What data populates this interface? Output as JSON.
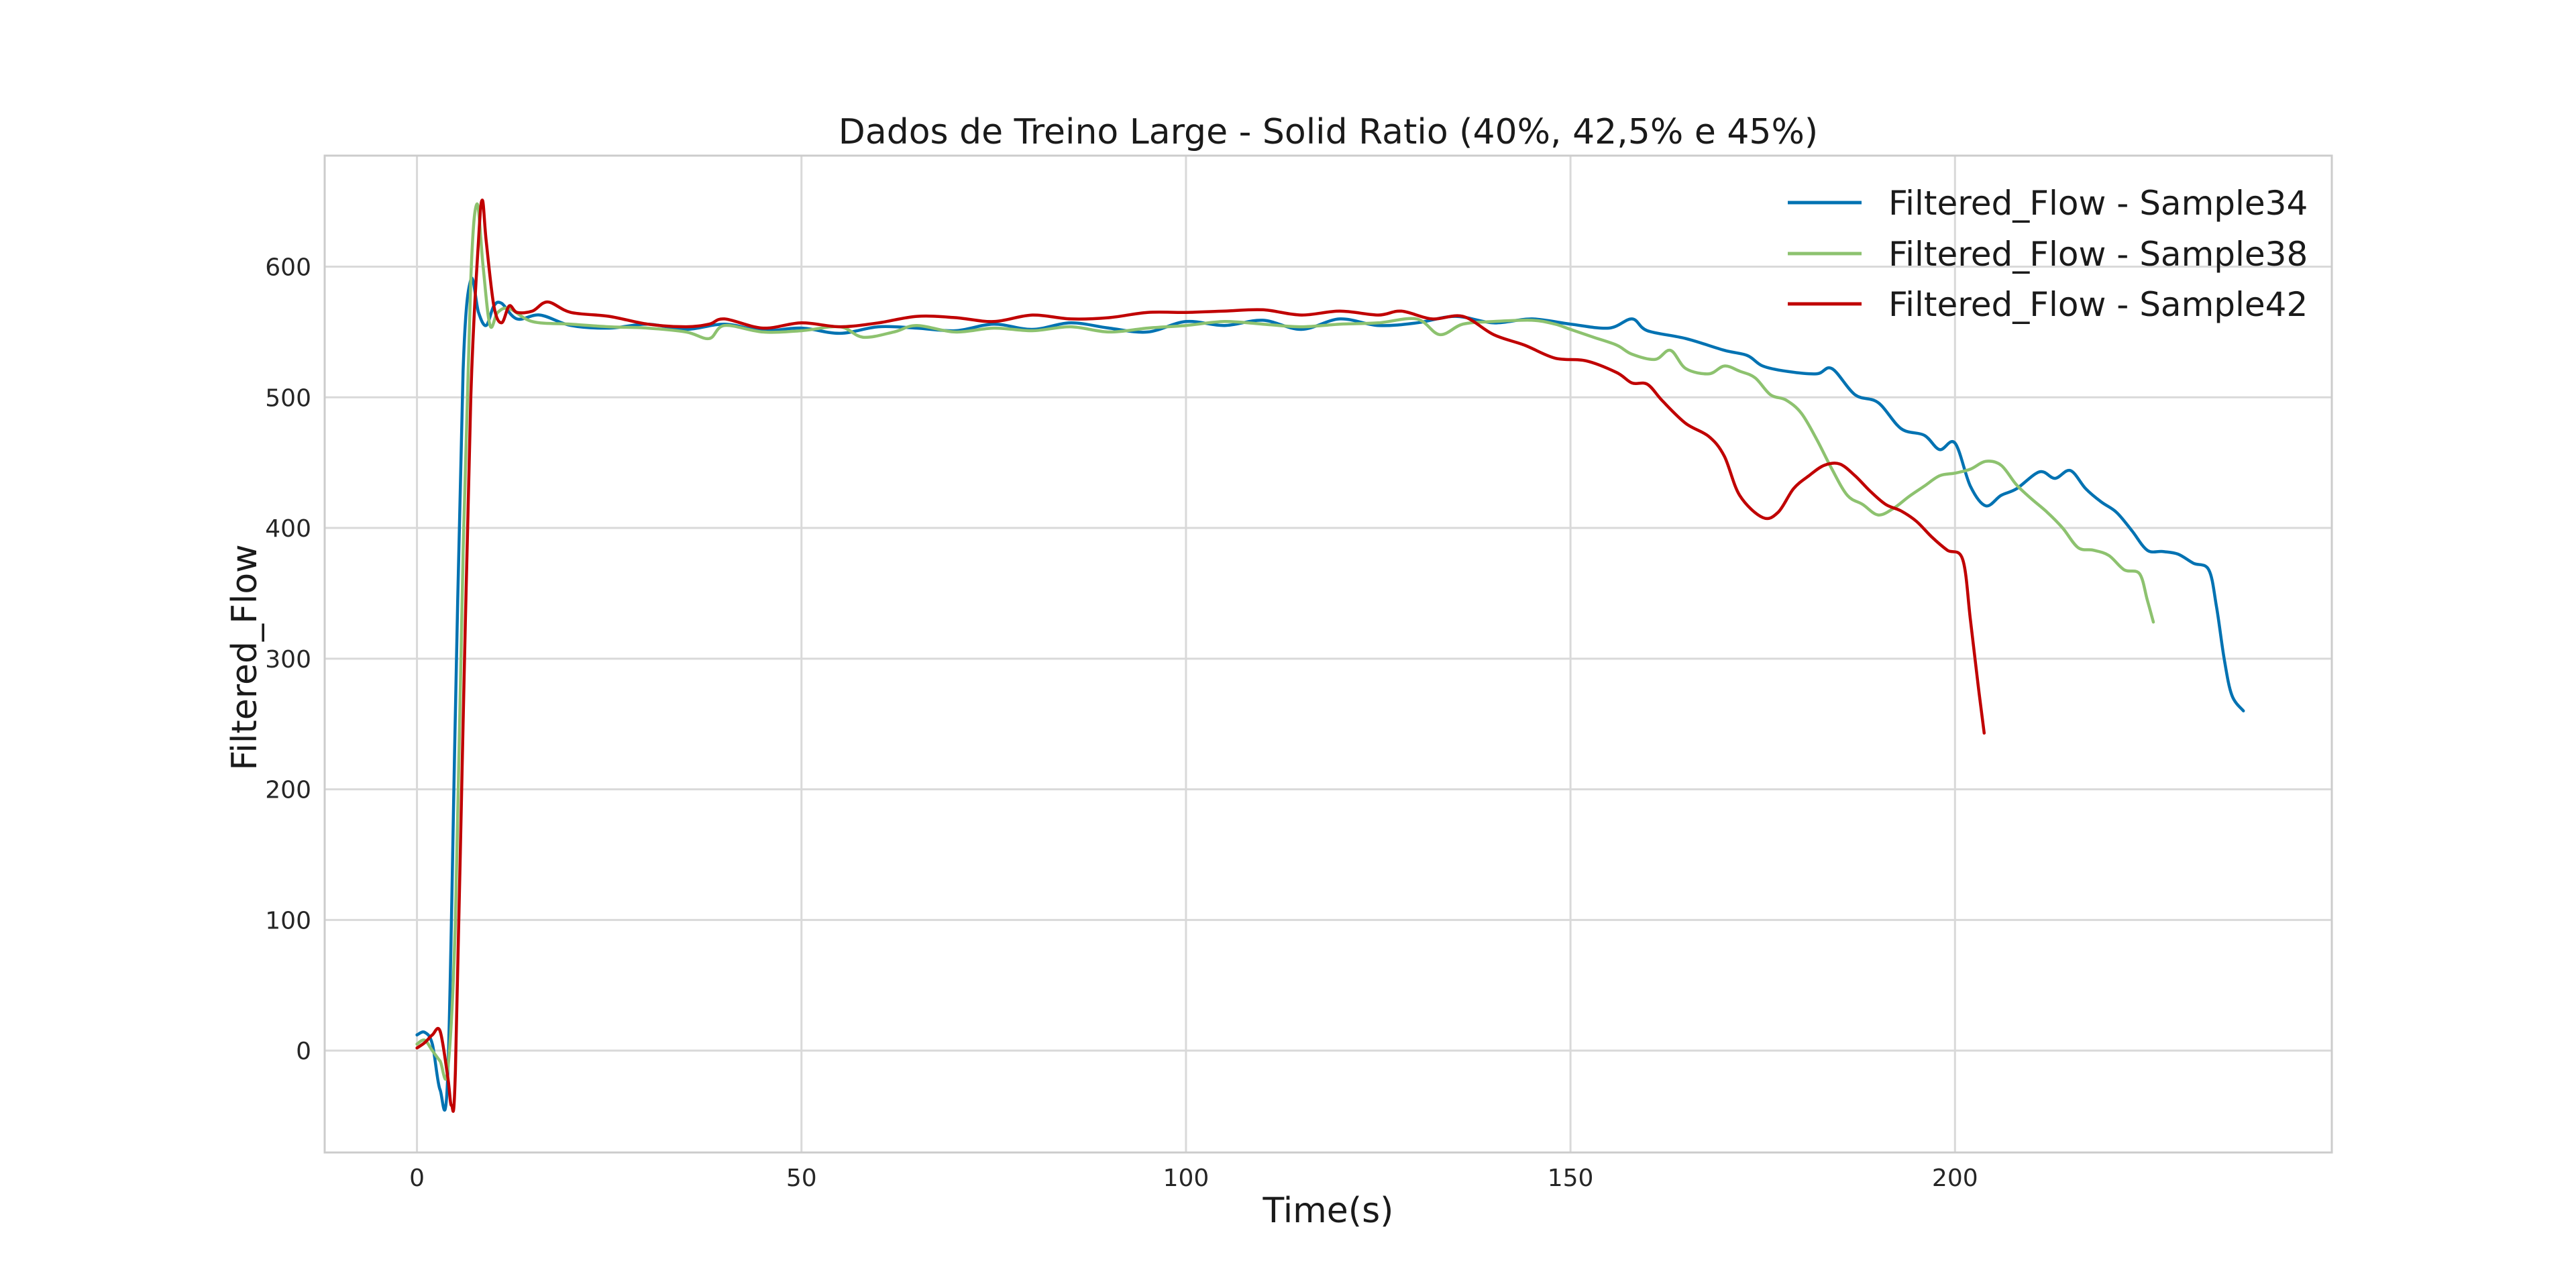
{
  "chart_data": {
    "type": "line",
    "title": "Dados de Treino Large - Solid Ratio (40%, 42,5% e 45%)",
    "xlabel": "Time(s)",
    "ylabel": "Filtered_Flow",
    "xlim": [
      -12,
      249
    ],
    "ylim": [
      -78,
      685
    ],
    "xticks": [
      0,
      50,
      100,
      150,
      200
    ],
    "xtick_labels": [
      "0",
      "50",
      "100",
      "150",
      "200"
    ],
    "yticks": [
      0,
      100,
      200,
      300,
      400,
      500,
      600
    ],
    "ytick_labels": [
      "0",
      "100",
      "200",
      "300",
      "400",
      "500",
      "600"
    ],
    "grid": true,
    "legend_position": "top-right",
    "series": [
      {
        "name": "Filtered_Flow - Sample34",
        "color": "#0072B2",
        "points": [
          [
            0,
            12
          ],
          [
            1,
            14
          ],
          [
            2,
            5
          ],
          [
            3,
            -30
          ],
          [
            4,
            -20
          ],
          [
            5,
            260
          ],
          [
            6,
            520
          ],
          [
            7,
            590
          ],
          [
            8,
            565
          ],
          [
            9,
            555
          ],
          [
            10,
            570
          ],
          [
            11,
            572
          ],
          [
            13,
            560
          ],
          [
            16,
            563
          ],
          [
            20,
            555
          ],
          [
            25,
            553
          ],
          [
            30,
            556
          ],
          [
            35,
            552
          ],
          [
            40,
            556
          ],
          [
            45,
            551
          ],
          [
            50,
            553
          ],
          [
            55,
            549
          ],
          [
            60,
            554
          ],
          [
            65,
            553
          ],
          [
            70,
            551
          ],
          [
            75,
            556
          ],
          [
            80,
            552
          ],
          [
            85,
            557
          ],
          [
            90,
            553
          ],
          [
            95,
            550
          ],
          [
            100,
            558
          ],
          [
            105,
            555
          ],
          [
            110,
            559
          ],
          [
            115,
            552
          ],
          [
            120,
            560
          ],
          [
            125,
            555
          ],
          [
            130,
            557
          ],
          [
            135,
            562
          ],
          [
            140,
            557
          ],
          [
            145,
            560
          ],
          [
            150,
            556
          ],
          [
            155,
            553
          ],
          [
            158,
            560
          ],
          [
            160,
            551
          ],
          [
            165,
            545
          ],
          [
            170,
            536
          ],
          [
            173,
            532
          ],
          [
            175,
            524
          ],
          [
            178,
            520
          ],
          [
            182,
            518
          ],
          [
            184,
            522
          ],
          [
            187,
            502
          ],
          [
            190,
            496
          ],
          [
            193,
            476
          ],
          [
            196,
            471
          ],
          [
            198,
            460
          ],
          [
            200,
            465
          ],
          [
            202,
            432
          ],
          [
            204,
            417
          ],
          [
            206,
            425
          ],
          [
            208,
            430
          ],
          [
            211,
            443
          ],
          [
            213,
            438
          ],
          [
            215,
            444
          ],
          [
            217,
            430
          ],
          [
            219,
            420
          ],
          [
            221,
            412
          ],
          [
            223,
            398
          ],
          [
            225,
            383
          ],
          [
            227,
            382
          ],
          [
            229,
            380
          ],
          [
            231,
            373
          ],
          [
            233,
            368
          ],
          [
            234,
            340
          ],
          [
            235,
            300
          ],
          [
            236,
            272
          ],
          [
            237.5,
            260
          ]
        ]
      },
      {
        "name": "Filtered_Flow - Sample38",
        "color": "#8DC26F",
        "points": [
          [
            0,
            5
          ],
          [
            1,
            8
          ],
          [
            2,
            0
          ],
          [
            3,
            -8
          ],
          [
            4,
            -15
          ],
          [
            5,
            100
          ],
          [
            6,
            380
          ],
          [
            7,
            590
          ],
          [
            7.8,
            648
          ],
          [
            8.6,
            600
          ],
          [
            9.5,
            555
          ],
          [
            10.5,
            565
          ],
          [
            12,
            568
          ],
          [
            15,
            558
          ],
          [
            20,
            556
          ],
          [
            25,
            554
          ],
          [
            30,
            553
          ],
          [
            35,
            550
          ],
          [
            38,
            545
          ],
          [
            40,
            555
          ],
          [
            45,
            550
          ],
          [
            50,
            551
          ],
          [
            55,
            554
          ],
          [
            58,
            546
          ],
          [
            62,
            550
          ],
          [
            65,
            555
          ],
          [
            70,
            550
          ],
          [
            75,
            553
          ],
          [
            80,
            551
          ],
          [
            85,
            554
          ],
          [
            90,
            550
          ],
          [
            95,
            553
          ],
          [
            100,
            555
          ],
          [
            105,
            558
          ],
          [
            110,
            556
          ],
          [
            115,
            554
          ],
          [
            120,
            556
          ],
          [
            125,
            557
          ],
          [
            130,
            560
          ],
          [
            133,
            548
          ],
          [
            136,
            556
          ],
          [
            140,
            558
          ],
          [
            145,
            559
          ],
          [
            148,
            556
          ],
          [
            150,
            552
          ],
          [
            153,
            546
          ],
          [
            156,
            540
          ],
          [
            158,
            533
          ],
          [
            161,
            529
          ],
          [
            163,
            536
          ],
          [
            165,
            522
          ],
          [
            168,
            518
          ],
          [
            170,
            524
          ],
          [
            172,
            520
          ],
          [
            174,
            515
          ],
          [
            176,
            502
          ],
          [
            178,
            498
          ],
          [
            180,
            488
          ],
          [
            182,
            468
          ],
          [
            184,
            445
          ],
          [
            186,
            425
          ],
          [
            188,
            418
          ],
          [
            190,
            410
          ],
          [
            192,
            415
          ],
          [
            194,
            424
          ],
          [
            196,
            432
          ],
          [
            198,
            440
          ],
          [
            200,
            442
          ],
          [
            202,
            445
          ],
          [
            204,
            451
          ],
          [
            206,
            448
          ],
          [
            208,
            433
          ],
          [
            210,
            422
          ],
          [
            212,
            412
          ],
          [
            214,
            400
          ],
          [
            216,
            385
          ],
          [
            218,
            383
          ],
          [
            220,
            379
          ],
          [
            222,
            368
          ],
          [
            224,
            365
          ],
          [
            225,
            345
          ],
          [
            225.8,
            328
          ]
        ]
      },
      {
        "name": "Filtered_Flow - Sample42",
        "color": "#C00000",
        "points": [
          [
            0,
            2
          ],
          [
            1,
            6
          ],
          [
            2,
            12
          ],
          [
            3,
            15
          ],
          [
            4,
            -20
          ],
          [
            4.5,
            -42
          ],
          [
            5,
            -15
          ],
          [
            6,
            250
          ],
          [
            7,
            500
          ],
          [
            8,
            620
          ],
          [
            8.5,
            651
          ],
          [
            9,
            620
          ],
          [
            10,
            570
          ],
          [
            11,
            557
          ],
          [
            12,
            570
          ],
          [
            13,
            565
          ],
          [
            15,
            566
          ],
          [
            17,
            573
          ],
          [
            20,
            565
          ],
          [
            25,
            562
          ],
          [
            30,
            556
          ],
          [
            35,
            554
          ],
          [
            38,
            556
          ],
          [
            40,
            560
          ],
          [
            45,
            553
          ],
          [
            50,
            557
          ],
          [
            55,
            554
          ],
          [
            60,
            557
          ],
          [
            65,
            562
          ],
          [
            70,
            561
          ],
          [
            75,
            558
          ],
          [
            80,
            563
          ],
          [
            85,
            560
          ],
          [
            90,
            561
          ],
          [
            95,
            565
          ],
          [
            100,
            565
          ],
          [
            105,
            566
          ],
          [
            110,
            567
          ],
          [
            115,
            563
          ],
          [
            120,
            566
          ],
          [
            125,
            563
          ],
          [
            128,
            566
          ],
          [
            132,
            560
          ],
          [
            136,
            562
          ],
          [
            140,
            548
          ],
          [
            144,
            540
          ],
          [
            148,
            530
          ],
          [
            152,
            528
          ],
          [
            156,
            519
          ],
          [
            158,
            511
          ],
          [
            160,
            510
          ],
          [
            162,
            497
          ],
          [
            165,
            480
          ],
          [
            168,
            470
          ],
          [
            170,
            455
          ],
          [
            172,
            425
          ],
          [
            175,
            408
          ],
          [
            177,
            412
          ],
          [
            179,
            430
          ],
          [
            181,
            440
          ],
          [
            183,
            448
          ],
          [
            185,
            449
          ],
          [
            187,
            440
          ],
          [
            189,
            428
          ],
          [
            191,
            418
          ],
          [
            193,
            413
          ],
          [
            195,
            405
          ],
          [
            197,
            393
          ],
          [
            199,
            383
          ],
          [
            201,
            376
          ],
          [
            202,
            330
          ],
          [
            203,
            280
          ],
          [
            203.8,
            243
          ]
        ]
      }
    ]
  }
}
